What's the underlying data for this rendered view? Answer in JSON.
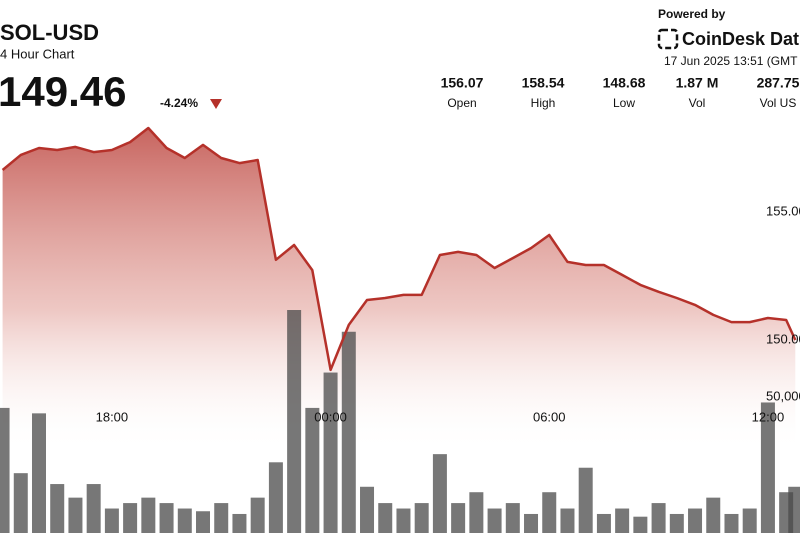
{
  "chart_data": {
    "type": "line",
    "title": "SOL-USD",
    "subtitle": "4 Hour Chart",
    "price": "149.46",
    "change": "-4.24%",
    "stats": [
      {
        "value": "156.07",
        "label": "Open"
      },
      {
        "value": "158.54",
        "label": "High"
      },
      {
        "value": "148.68",
        "label": "Low"
      },
      {
        "value": "1.87 M",
        "label": "Vol"
      },
      {
        "value": "287.75",
        "label": "Vol US"
      }
    ],
    "powered_by": "Powered by",
    "brand": "CoinDesk Dat",
    "timestamp": "17 Jun 2025 13:51 (GMT",
    "x": [
      15,
      15.5,
      16,
      16.5,
      17,
      17.5,
      18,
      18.5,
      19,
      19.5,
      20,
      20.5,
      21,
      21.5,
      22,
      22.5,
      23,
      23.5,
      24,
      24.5,
      25,
      25.5,
      26,
      26.5,
      27,
      27.5,
      28,
      28.5,
      29,
      29.5,
      30,
      30.5,
      31,
      31.5,
      32,
      32.5,
      33,
      33.5,
      34,
      34.5,
      35,
      35.5,
      36,
      36.5,
      36.75
    ],
    "xlim": [
      14.93,
      36.88
    ],
    "xticks": [
      {
        "value": 18,
        "label": "18:00"
      },
      {
        "value": 24,
        "label": "00:00"
      },
      {
        "value": 30,
        "label": "06:00"
      },
      {
        "value": 36,
        "label": "12:00"
      }
    ],
    "ylim": [
      142.46,
      163.28
    ],
    "yticks": [
      {
        "value": 150,
        "label": "150.00"
      },
      {
        "value": 155,
        "label": "155.00"
      }
    ],
    "y2lim": [
      0,
      196000
    ],
    "y2ticks": [
      {
        "value": 50000,
        "label": "50,000"
      }
    ],
    "grid": false,
    "series": [
      {
        "name": "Price",
        "type": "area",
        "color": "#b5312a",
        "values": [
          156.64,
          157.23,
          157.5,
          157.42,
          157.54,
          157.34,
          157.42,
          157.73,
          158.28,
          157.5,
          157.11,
          157.62,
          157.11,
          156.91,
          157.03,
          153.13,
          153.71,
          152.73,
          148.83,
          150.59,
          151.56,
          151.64,
          151.76,
          151.76,
          153.32,
          153.44,
          153.32,
          152.81,
          153.2,
          153.59,
          154.1,
          153.05,
          152.93,
          152.93,
          152.54,
          152.15,
          151.88,
          151.64,
          151.37,
          150.98,
          150.7,
          150.7,
          150.86,
          150.78,
          150.0
        ]
      },
      {
        "name": "Volume",
        "type": "bar",
        "axis": "y2",
        "color": "#4a4a4a",
        "values": [
          46000,
          22000,
          44000,
          18000,
          13000,
          18000,
          9000,
          11000,
          13000,
          11000,
          9000,
          8000,
          11000,
          7000,
          13000,
          26000,
          82000,
          46000,
          59000,
          74000,
          17000,
          11000,
          9000,
          11000,
          29000,
          11000,
          15000,
          9000,
          11000,
          7000,
          15000,
          9000,
          24000,
          7000,
          9000,
          6000,
          11000,
          7000,
          9000,
          13000,
          7000,
          9000,
          48000,
          15000,
          17000
        ]
      }
    ]
  }
}
